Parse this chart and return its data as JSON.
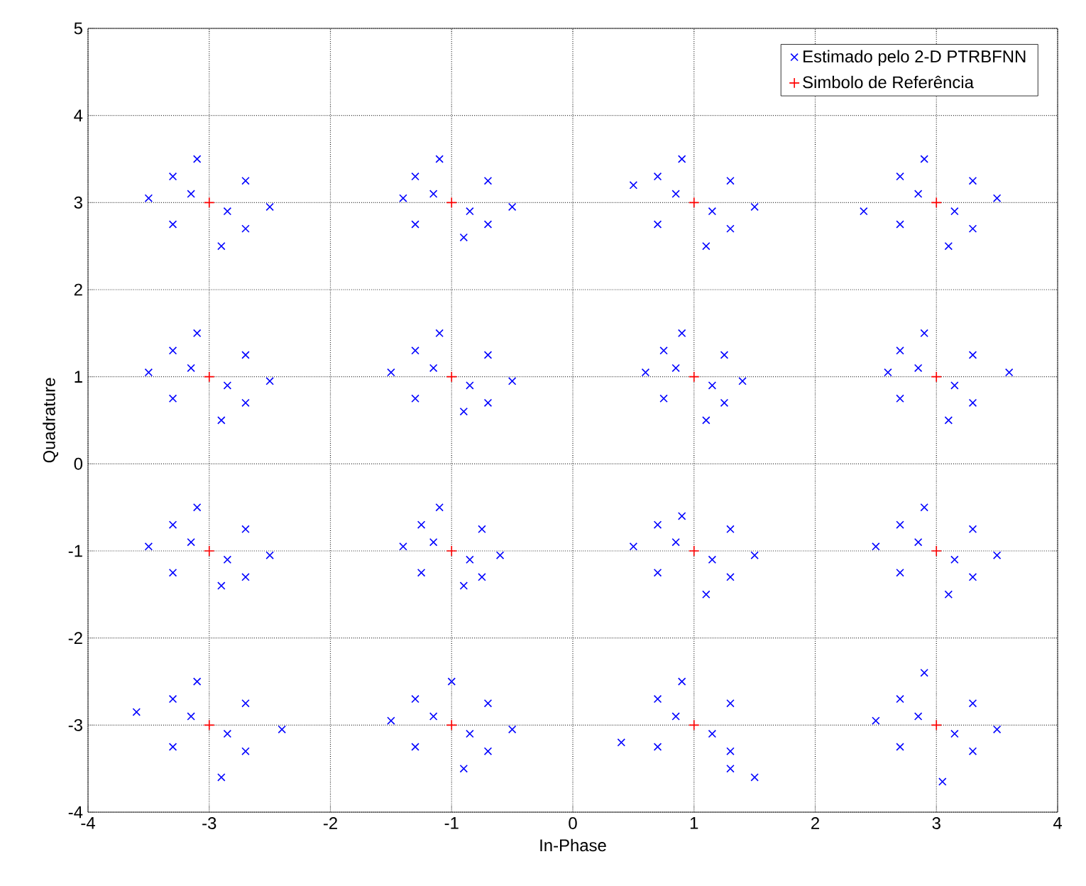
{
  "chart_data": {
    "type": "scatter",
    "xlabel": "In-Phase",
    "ylabel": "Quadrature",
    "xlim": [
      -4,
      4
    ],
    "ylim": [
      -4,
      5
    ],
    "xticks": [
      -4,
      -3,
      -2,
      -1,
      0,
      1,
      2,
      3,
      4
    ],
    "yticks": [
      -4,
      -3,
      -2,
      -1,
      0,
      1,
      2,
      3,
      4,
      5
    ],
    "grid": true,
    "legend": "top right",
    "series": [
      {
        "name": "Estimado pelo 2-D PTRBFNN",
        "color": "#0000ff",
        "marker": "cross",
        "x": [
          -3.5,
          -2.5,
          -3.1,
          -2.9,
          -3.3,
          -2.7,
          -2.7,
          -3.3,
          -3.15,
          -2.85,
          -1.4,
          -0.5,
          -1.1,
          -0.9,
          -1.3,
          -0.7,
          -0.7,
          -1.3,
          -1.15,
          -0.85,
          0.5,
          1.5,
          0.9,
          1.1,
          0.7,
          1.3,
          1.3,
          0.7,
          0.85,
          1.15,
          2.4,
          3.5,
          2.9,
          3.1,
          2.7,
          3.3,
          3.3,
          2.7,
          2.85,
          3.15,
          -3.5,
          -2.5,
          -3.1,
          -2.9,
          -3.3,
          -2.7,
          -2.7,
          -3.3,
          -3.15,
          -2.85,
          -1.5,
          -0.5,
          -1.1,
          -0.9,
          -1.3,
          -0.7,
          -0.7,
          -1.3,
          -1.15,
          -0.85,
          0.6,
          1.4,
          0.9,
          1.1,
          0.75,
          1.25,
          1.25,
          0.75,
          0.85,
          1.15,
          2.6,
          3.6,
          2.9,
          3.1,
          2.7,
          3.3,
          3.3,
          2.7,
          2.85,
          3.15,
          -3.5,
          -2.5,
          -3.1,
          -2.9,
          -3.3,
          -2.7,
          -2.7,
          -3.3,
          -3.15,
          -2.85,
          -1.4,
          -0.6,
          -1.1,
          -0.9,
          -1.25,
          -0.75,
          -0.75,
          -1.25,
          -1.15,
          -0.85,
          0.5,
          1.5,
          0.9,
          1.1,
          0.7,
          1.3,
          1.3,
          0.7,
          0.85,
          1.15,
          2.5,
          3.5,
          2.9,
          3.1,
          2.7,
          3.3,
          3.3,
          2.7,
          2.85,
          3.15,
          -3.6,
          -2.4,
          -3.1,
          -2.9,
          -3.3,
          -2.7,
          -2.7,
          -3.3,
          -3.15,
          -2.85,
          -1.5,
          -0.5,
          -1.0,
          -0.9,
          -1.3,
          -0.7,
          -0.7,
          -1.3,
          -1.15,
          -0.85,
          0.4,
          1.5,
          0.9,
          1.3,
          0.7,
          1.3,
          1.3,
          0.7,
          0.85,
          1.15,
          2.5,
          3.5,
          2.9,
          3.05,
          2.7,
          3.3,
          3.3,
          2.7,
          2.85,
          3.15
        ],
        "values": [
          3.05,
          2.95,
          3.5,
          2.5,
          3.3,
          2.7,
          3.25,
          2.75,
          3.1,
          2.9,
          3.05,
          2.95,
          3.5,
          2.6,
          3.3,
          2.75,
          3.25,
          2.75,
          3.1,
          2.9,
          3.2,
          2.95,
          3.5,
          2.5,
          3.3,
          2.7,
          3.25,
          2.75,
          3.1,
          2.9,
          2.9,
          3.05,
          3.5,
          2.5,
          3.3,
          2.7,
          3.25,
          2.75,
          3.1,
          2.9,
          1.05,
          0.95,
          1.5,
          0.5,
          1.3,
          0.7,
          1.25,
          0.75,
          1.1,
          0.9,
          1.05,
          0.95,
          1.5,
          0.6,
          1.3,
          0.7,
          1.25,
          0.75,
          1.1,
          0.9,
          1.05,
          0.95,
          1.5,
          0.5,
          1.3,
          0.7,
          1.25,
          0.75,
          1.1,
          0.9,
          1.05,
          1.05,
          1.5,
          0.5,
          1.3,
          0.7,
          1.25,
          0.75,
          1.1,
          0.9,
          -0.95,
          -1.05,
          -0.5,
          -1.4,
          -0.7,
          -1.3,
          -0.75,
          -1.25,
          -0.9,
          -1.1,
          -0.95,
          -1.05,
          -0.5,
          -1.4,
          -0.7,
          -1.3,
          -0.75,
          -1.25,
          -0.9,
          -1.1,
          -0.95,
          -1.05,
          -0.6,
          -1.5,
          -0.7,
          -1.3,
          -0.75,
          -1.25,
          -0.9,
          -1.1,
          -0.95,
          -1.05,
          -0.5,
          -1.5,
          -0.7,
          -1.3,
          -0.75,
          -1.25,
          -0.9,
          -1.1,
          -2.85,
          -3.05,
          -2.5,
          -3.6,
          -2.7,
          -3.3,
          -2.75,
          -3.25,
          -2.9,
          -3.1,
          -2.95,
          -3.05,
          -2.5,
          -3.5,
          -2.7,
          -3.3,
          -2.75,
          -3.25,
          -2.9,
          -3.1,
          -3.2,
          -3.6,
          -2.5,
          -3.5,
          -2.7,
          -3.3,
          -2.75,
          -3.25,
          -2.9,
          -3.1,
          -2.95,
          -3.05,
          -2.4,
          -3.65,
          -2.7,
          -3.3,
          -2.75,
          -3.25,
          -2.9,
          -3.1
        ]
      },
      {
        "name": "Simbolo de Referência",
        "color": "#ff0000",
        "marker": "plus",
        "x": [
          -3,
          -1,
          1,
          3,
          -3,
          -1,
          1,
          3,
          -3,
          -1,
          1,
          3,
          -3,
          -1,
          1,
          3
        ],
        "values": [
          3,
          3,
          3,
          3,
          1,
          1,
          1,
          1,
          -1,
          -1,
          -1,
          -1,
          -3,
          -3,
          -3,
          -3
        ]
      }
    ]
  }
}
